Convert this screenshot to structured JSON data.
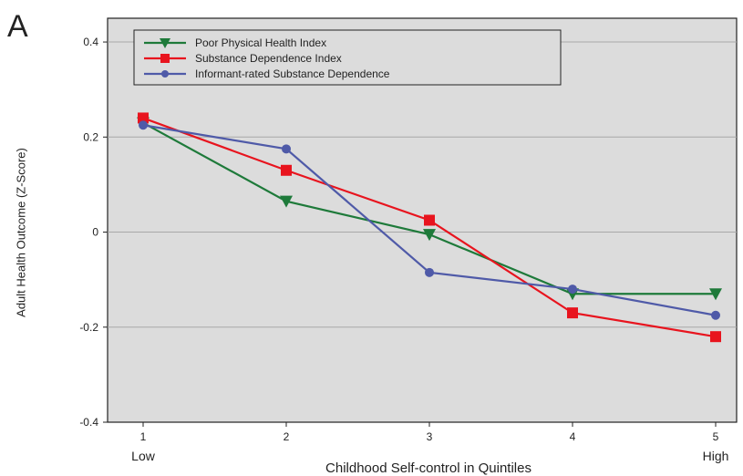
{
  "panel_label": "A",
  "chart_data": {
    "type": "line",
    "title": "",
    "xlabel": "Childhood Self-control in Quintiles",
    "ylabel": "Adult Health Outcome (Z-Score)",
    "x": [
      1,
      2,
      3,
      4,
      5
    ],
    "x_tick_labels": [
      "1",
      "2",
      "3",
      "4",
      "5"
    ],
    "x_end_labels": {
      "low": "Low",
      "high": "High"
    },
    "ylim": [
      -0.4,
      0.45
    ],
    "y_ticks": [
      -0.4,
      -0.2,
      0,
      0.2,
      0.4
    ],
    "y_tick_labels": [
      "-0.4",
      "-0.2",
      "0",
      "0.2",
      "0.4"
    ],
    "grid": "horizontal",
    "legend_position": "top-left",
    "background_color": "#dcdcdc",
    "series": [
      {
        "name": "Poor Physical Health Index",
        "color": "#1e7a3a",
        "marker": "triangle-down",
        "values": [
          0.23,
          0.065,
          -0.005,
          -0.13,
          -0.13
        ]
      },
      {
        "name": "Substance Dependence Index",
        "color": "#e8141e",
        "marker": "square",
        "values": [
          0.24,
          0.13,
          0.025,
          -0.17,
          -0.22
        ]
      },
      {
        "name": "Informant-rated Substance Dependence",
        "color": "#4f5aa8",
        "marker": "circle",
        "values": [
          0.225,
          0.175,
          -0.085,
          -0.12,
          -0.175
        ]
      }
    ]
  }
}
